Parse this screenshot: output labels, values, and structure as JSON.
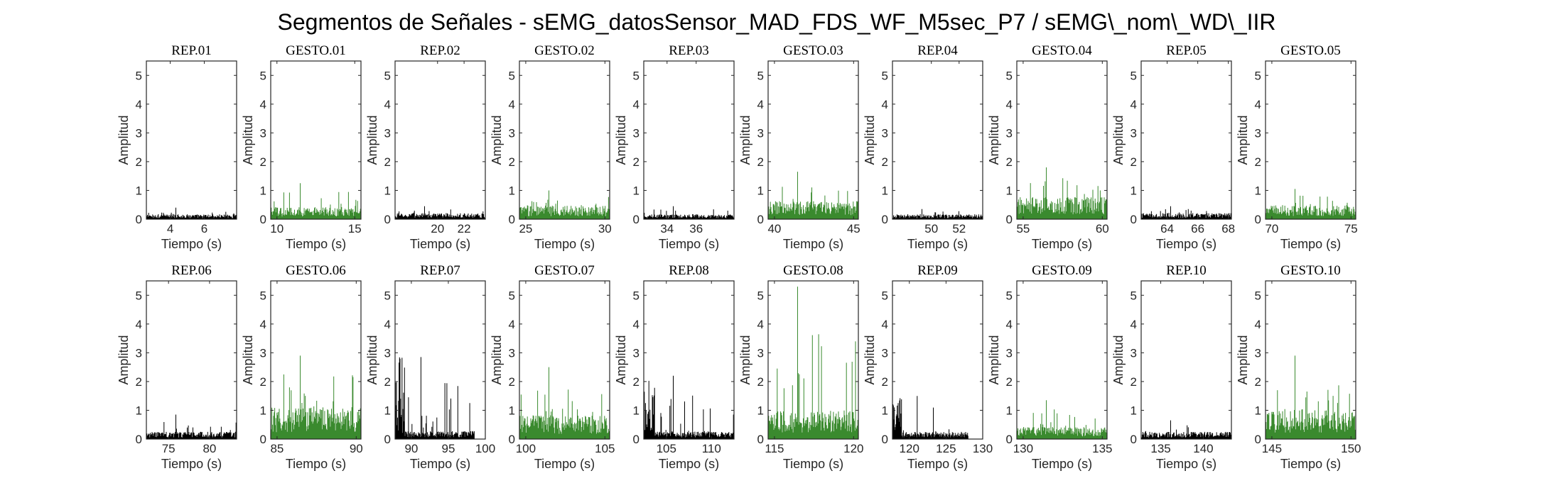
{
  "figure": {
    "title": "Segmentos de Señales - sEMG_datosSensor_MAD_FDS_WF_M5sec_P7 / sEMG\\_nom\\_WD\\_IIR"
  },
  "colors": {
    "rep": "#000000",
    "gesto": "#3a8a2e",
    "axis": "#262626"
  },
  "chart_data": [
    {
      "type": "bar",
      "title": "REP_01",
      "xlabel": "Tiempo (s)",
      "ylabel": "Amplitud",
      "xlim": [
        2.6,
        7.9
      ],
      "ylim": [
        0,
        5.5
      ],
      "xticks": [
        4,
        6
      ],
      "yticks": [
        0,
        1,
        2,
        3,
        4,
        5
      ],
      "series": [
        {
          "class": "rep",
          "x_range": [
            2.6,
            7.9
          ],
          "baseline": 0.12,
          "max": 0.4
        }
      ]
    },
    {
      "type": "bar",
      "title": "GESTO_01",
      "xlabel": "Tiempo (s)",
      "ylabel": "Amplitud",
      "xlim": [
        9.6,
        15.4
      ],
      "ylim": [
        0,
        5.5
      ],
      "xticks": [
        10,
        15
      ],
      "yticks": [
        0,
        1,
        2,
        3,
        4,
        5
      ],
      "series": [
        {
          "class": "gesto",
          "x_range": [
            9.6,
            15.4
          ],
          "baseline": 0.3,
          "max": 1.25
        }
      ]
    },
    {
      "type": "bar",
      "title": "REP_02",
      "xlabel": "Tiempo (s)",
      "ylabel": "Amplitud",
      "xlim": [
        16.8,
        23.6
      ],
      "ylim": [
        0,
        5.5
      ],
      "xticks": [
        20,
        22
      ],
      "yticks": [
        0,
        1,
        2,
        3,
        4,
        5
      ],
      "series": [
        {
          "class": "rep",
          "x_range": [
            16.8,
            23.6
          ],
          "baseline": 0.15,
          "max": 0.45
        }
      ]
    },
    {
      "type": "bar",
      "title": "GESTO_02",
      "xlabel": "Tiempo (s)",
      "ylabel": "Amplitud",
      "xlim": [
        24.6,
        30.3
      ],
      "ylim": [
        0,
        5.5
      ],
      "xticks": [
        25,
        30
      ],
      "yticks": [
        0,
        1,
        2,
        3,
        4,
        5
      ],
      "series": [
        {
          "class": "gesto",
          "x_range": [
            24.6,
            30.3
          ],
          "baseline": 0.35,
          "max": 1.0
        }
      ]
    },
    {
      "type": "bar",
      "title": "REP_03",
      "xlabel": "Tiempo (s)",
      "ylabel": "Amplitud",
      "xlim": [
        32.4,
        38.6
      ],
      "ylim": [
        0,
        5.5
      ],
      "xticks": [
        34,
        36
      ],
      "yticks": [
        0,
        1,
        2,
        3,
        4,
        5
      ],
      "series": [
        {
          "class": "rep",
          "x_range": [
            32.4,
            38.6
          ],
          "baseline": 0.12,
          "max": 0.45
        }
      ]
    },
    {
      "type": "bar",
      "title": "GESTO_03",
      "xlabel": "Tiempo (s)",
      "ylabel": "Amplitud",
      "xlim": [
        39.6,
        45.3
      ],
      "ylim": [
        0,
        5.5
      ],
      "xticks": [
        40,
        45
      ],
      "yticks": [
        0,
        1,
        2,
        3,
        4,
        5
      ],
      "series": [
        {
          "class": "gesto",
          "x_range": [
            39.6,
            45.3
          ],
          "baseline": 0.45,
          "max": 1.65
        }
      ]
    },
    {
      "type": "bar",
      "title": "REP_04",
      "xlabel": "Tiempo (s)",
      "ylabel": "Amplitud",
      "xlim": [
        47.2,
        53.7
      ],
      "ylim": [
        0,
        5.5
      ],
      "xticks": [
        50,
        52
      ],
      "yticks": [
        0,
        1,
        2,
        3,
        4,
        5
      ],
      "series": [
        {
          "class": "rep",
          "x_range": [
            47.2,
            53.7
          ],
          "baseline": 0.12,
          "max": 0.35
        }
      ]
    },
    {
      "type": "bar",
      "title": "GESTO_04",
      "xlabel": "Tiempo (s)",
      "ylabel": "Amplitud",
      "xlim": [
        54.6,
        60.3
      ],
      "ylim": [
        0,
        5.5
      ],
      "xticks": [
        55,
        60
      ],
      "yticks": [
        0,
        1,
        2,
        3,
        4,
        5
      ],
      "series": [
        {
          "class": "gesto",
          "x_range": [
            54.6,
            60.3
          ],
          "baseline": 0.55,
          "max": 1.8
        }
      ]
    },
    {
      "type": "bar",
      "title": "REP_05",
      "xlabel": "Tiempo (s)",
      "ylabel": "Amplitud",
      "xlim": [
        62.3,
        68.2
      ],
      "ylim": [
        0,
        5.5
      ],
      "xticks": [
        64,
        66,
        68
      ],
      "yticks": [
        0,
        1,
        2,
        3,
        4,
        5
      ],
      "series": [
        {
          "class": "rep",
          "x_range": [
            62.3,
            68.2
          ],
          "baseline": 0.15,
          "max": 0.45
        }
      ]
    },
    {
      "type": "bar",
      "title": "GESTO_05",
      "xlabel": "Tiempo (s)",
      "ylabel": "Amplitud",
      "xlim": [
        69.6,
        75.3
      ],
      "ylim": [
        0,
        5.5
      ],
      "xticks": [
        70,
        75
      ],
      "yticks": [
        0,
        1,
        2,
        3,
        4,
        5
      ],
      "series": [
        {
          "class": "gesto",
          "x_range": [
            69.6,
            75.3
          ],
          "baseline": 0.35,
          "max": 1.05
        }
      ]
    },
    {
      "type": "bar",
      "title": "REP_06",
      "xlabel": "Tiempo (s)",
      "ylabel": "Amplitud",
      "xlim": [
        72.3,
        83.3
      ],
      "ylim": [
        0,
        5.5
      ],
      "xticks": [
        75,
        80
      ],
      "yticks": [
        0,
        1,
        2,
        3,
        4,
        5
      ],
      "series": [
        {
          "class": "rep",
          "x_range": [
            72.3,
            83.3
          ],
          "baseline": 0.18,
          "max": 0.85
        }
      ]
    },
    {
      "type": "bar",
      "title": "GESTO_06",
      "xlabel": "Tiempo (s)",
      "ylabel": "Amplitud",
      "xlim": [
        84.6,
        90.3
      ],
      "ylim": [
        0,
        5.5
      ],
      "xticks": [
        85,
        90
      ],
      "yticks": [
        0,
        1,
        2,
        3,
        4,
        5
      ],
      "series": [
        {
          "class": "gesto",
          "x_range": [
            84.6,
            90.3
          ],
          "baseline": 0.8,
          "max": 2.9
        }
      ]
    },
    {
      "type": "bar",
      "title": "REP_07",
      "xlabel": "Tiempo (s)",
      "ylabel": "Amplitud",
      "xlim": [
        87.8,
        100
      ],
      "ylim": [
        0,
        5.5
      ],
      "xticks": [
        90,
        95,
        100
      ],
      "yticks": [
        0,
        1,
        2,
        3,
        4,
        5
      ],
      "series": [
        {
          "class": "rep",
          "x_range": [
            87.8,
            98.5
          ],
          "baseline": 0.2,
          "max": 2.85
        }
      ]
    },
    {
      "type": "bar",
      "title": "GESTO_07",
      "xlabel": "Tiempo (s)",
      "ylabel": "Amplitud",
      "xlim": [
        99.6,
        105.3
      ],
      "ylim": [
        0,
        5.5
      ],
      "xticks": [
        100,
        105
      ],
      "yticks": [
        0,
        1,
        2,
        3,
        4,
        5
      ],
      "series": [
        {
          "class": "gesto",
          "x_range": [
            99.6,
            105.3
          ],
          "baseline": 0.6,
          "max": 2.5
        }
      ]
    },
    {
      "type": "bar",
      "title": "REP_08",
      "xlabel": "Tiempo (s)",
      "ylabel": "Amplitud",
      "xlim": [
        102.5,
        112.5
      ],
      "ylim": [
        0,
        5.5
      ],
      "xticks": [
        105,
        110
      ],
      "yticks": [
        0,
        1,
        2,
        3,
        4,
        5
      ],
      "series": [
        {
          "class": "rep",
          "x_range": [
            102.5,
            112.5
          ],
          "baseline": 0.2,
          "max": 2.2
        }
      ]
    },
    {
      "type": "bar",
      "title": "GESTO_08",
      "xlabel": "Tiempo (s)",
      "ylabel": "Amplitud",
      "xlim": [
        114.6,
        120.3
      ],
      "ylim": [
        0,
        5.5
      ],
      "xticks": [
        115,
        120
      ],
      "yticks": [
        0,
        1,
        2,
        3,
        4,
        5
      ],
      "series": [
        {
          "class": "gesto",
          "x_range": [
            114.6,
            120.3
          ],
          "baseline": 0.7,
          "max": 5.3
        }
      ]
    },
    {
      "type": "bar",
      "title": "REP_09",
      "xlabel": "Tiempo (s)",
      "ylabel": "Amplitud",
      "xlim": [
        117.7,
        130
      ],
      "ylim": [
        0,
        5.5
      ],
      "xticks": [
        120,
        125,
        130
      ],
      "yticks": [
        0,
        1,
        2,
        3,
        4,
        5
      ],
      "series": [
        {
          "class": "rep",
          "x_range": [
            117.7,
            128
          ],
          "baseline": 0.18,
          "max": 1.5
        }
      ]
    },
    {
      "type": "bar",
      "title": "GESTO_09",
      "xlabel": "Tiempo (s)",
      "ylabel": "Amplitud",
      "xlim": [
        129.6,
        135.3
      ],
      "ylim": [
        0,
        5.5
      ],
      "xticks": [
        130,
        135
      ],
      "yticks": [
        0,
        1,
        2,
        3,
        4,
        5
      ],
      "series": [
        {
          "class": "gesto",
          "x_range": [
            129.6,
            135.3
          ],
          "baseline": 0.3,
          "max": 1.35
        }
      ]
    },
    {
      "type": "bar",
      "title": "REP_10",
      "xlabel": "Tiempo (s)",
      "ylabel": "Amplitud",
      "xlim": [
        132.7,
        143.3
      ],
      "ylim": [
        0,
        5.5
      ],
      "xticks": [
        135,
        140
      ],
      "yticks": [
        0,
        1,
        2,
        3,
        4,
        5
      ],
      "series": [
        {
          "class": "rep",
          "x_range": [
            132.7,
            143.3
          ],
          "baseline": 0.18,
          "max": 0.65
        }
      ]
    },
    {
      "type": "bar",
      "title": "GESTO_10",
      "xlabel": "Tiempo (s)",
      "ylabel": "Amplitud",
      "xlim": [
        144.6,
        150.3
      ],
      "ylim": [
        0,
        5.5
      ],
      "xticks": [
        145,
        150
      ],
      "yticks": [
        0,
        1,
        2,
        3,
        4,
        5
      ],
      "series": [
        {
          "class": "gesto",
          "x_range": [
            144.6,
            150.3
          ],
          "baseline": 0.75,
          "max": 2.9
        }
      ]
    }
  ]
}
